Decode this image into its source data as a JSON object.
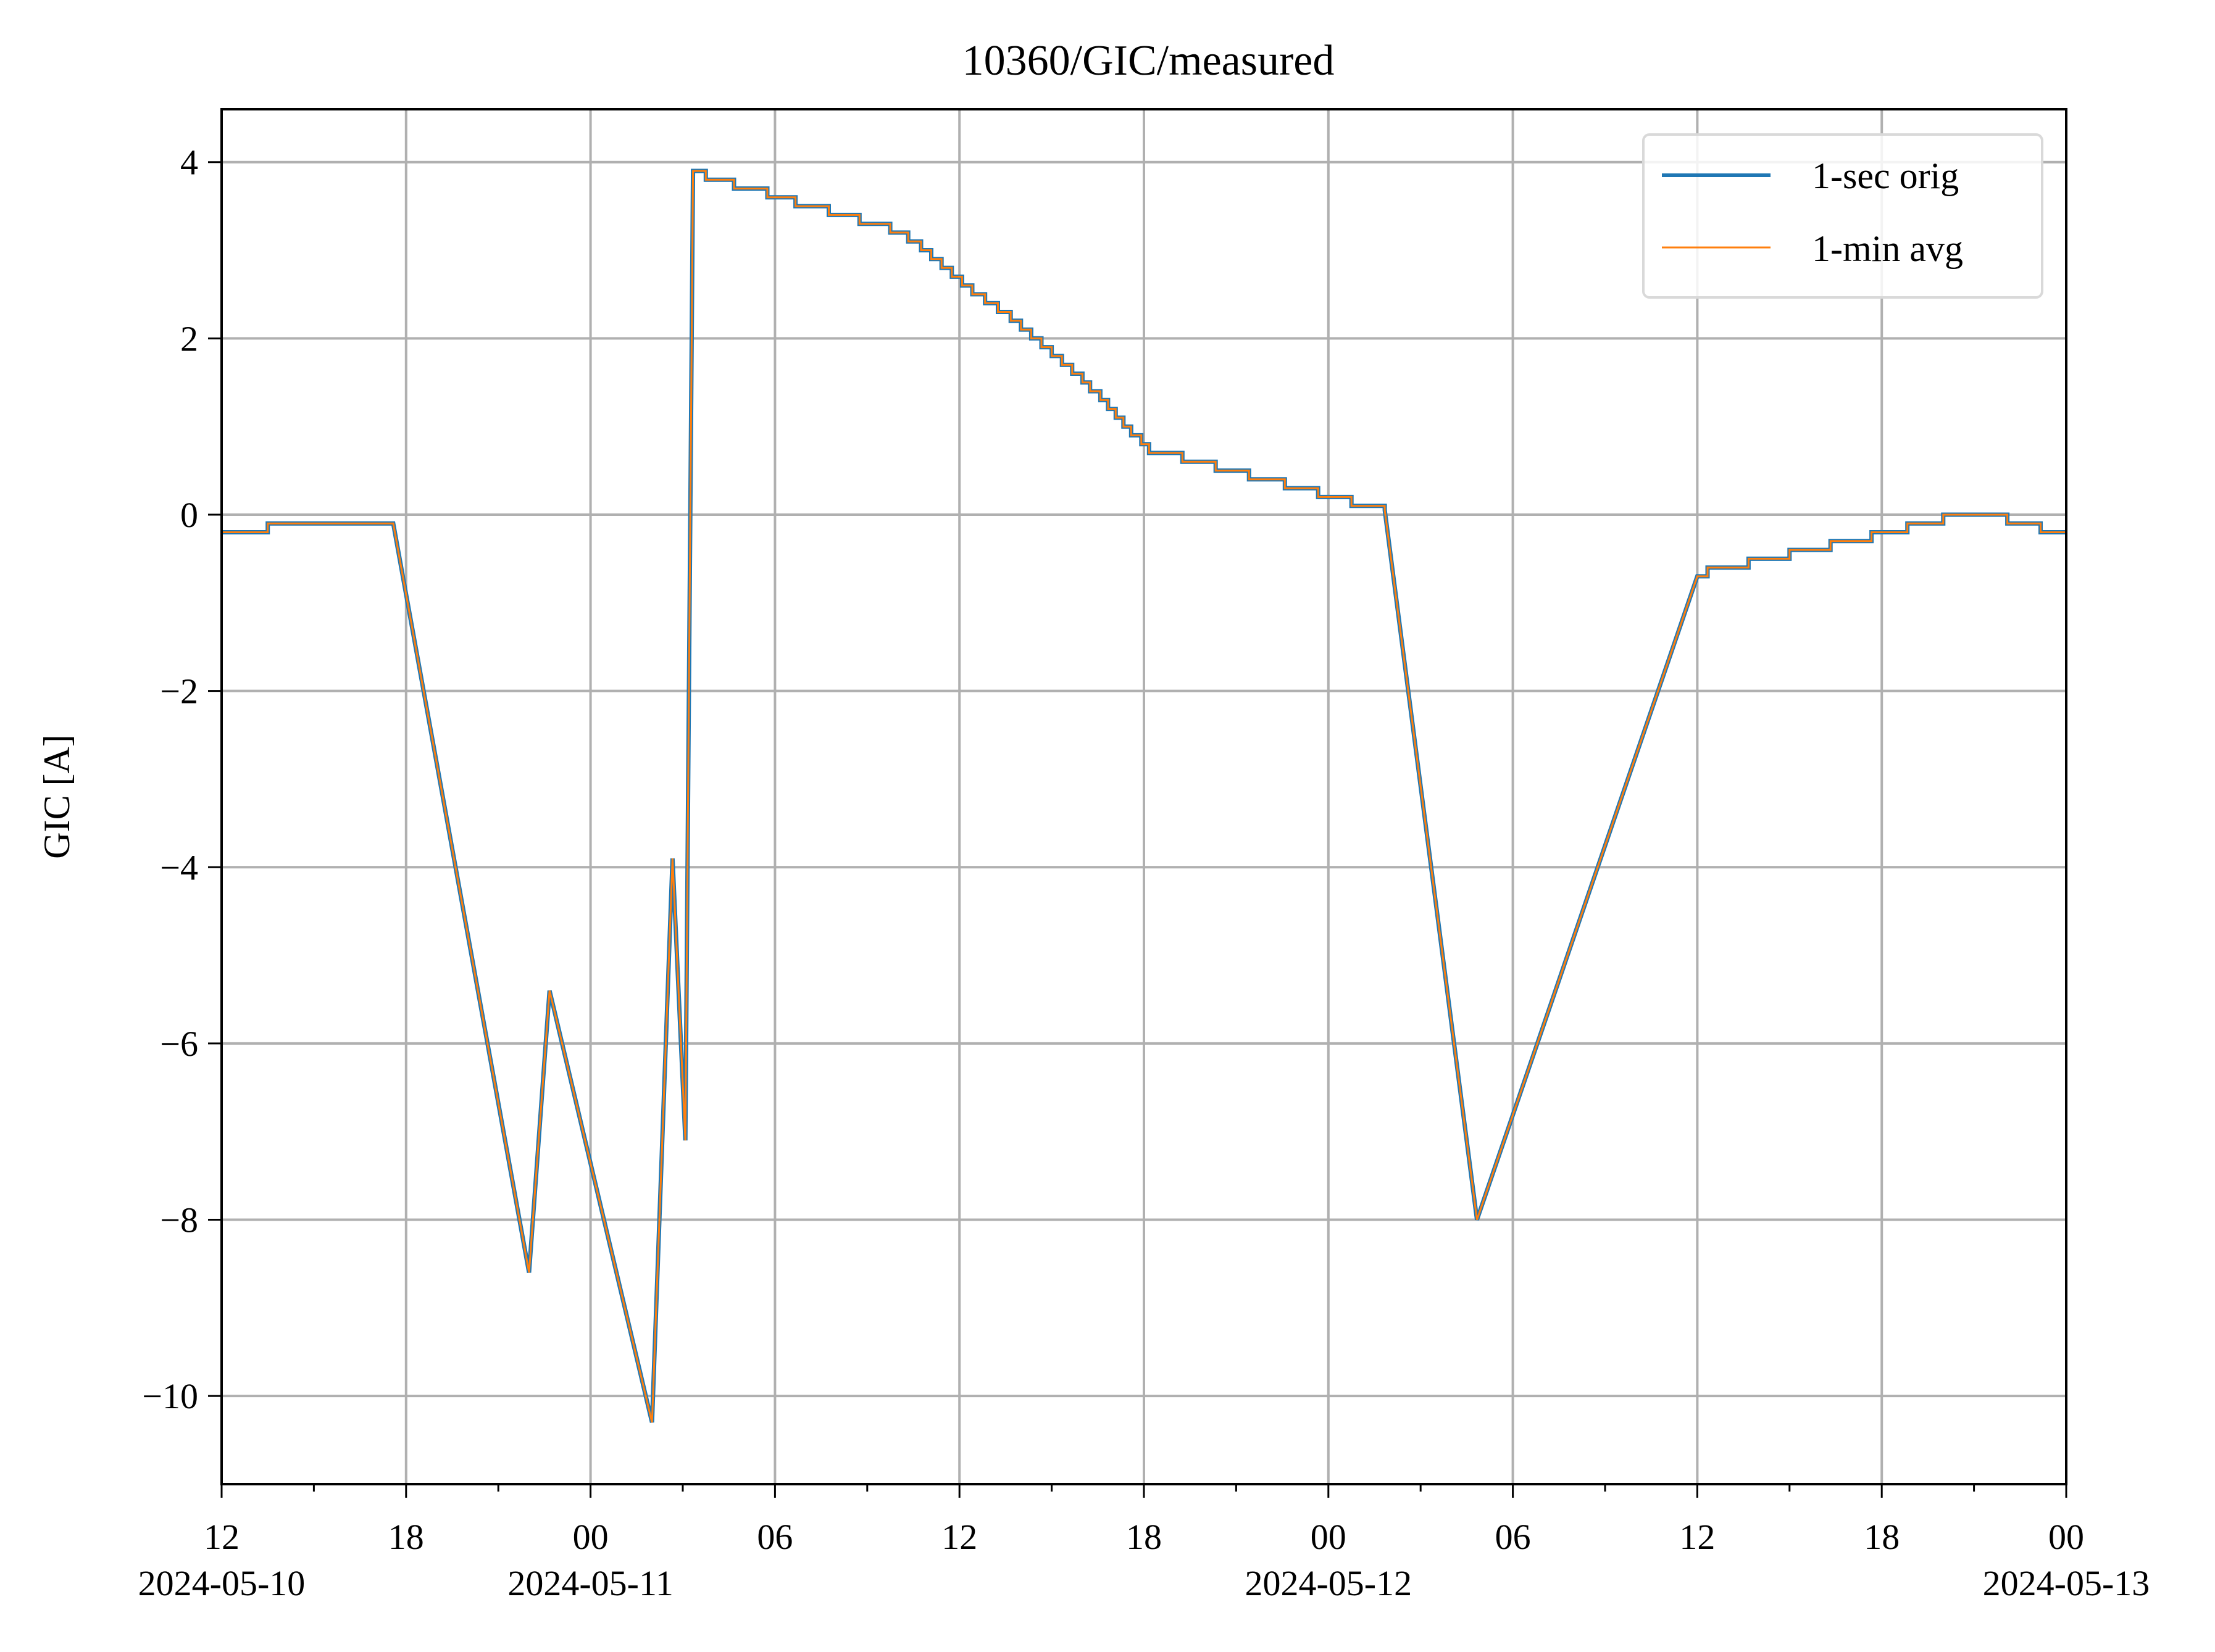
{
  "chart_data": {
    "type": "line",
    "title": "10360/GIC/measured",
    "xlabel": "",
    "ylabel": "GIC [A]",
    "x_axis": "datetime",
    "xlim": [
      "2024-05-10 12:00",
      "2024-05-13 00:00"
    ],
    "ylim": [
      -11.0,
      4.6
    ],
    "grid": true,
    "legend_position": "upper-right",
    "x_ticks": [
      {
        "t": "2024-05-10 12:00",
        "label": "12",
        "date": "2024-05-10"
      },
      {
        "t": "2024-05-10 18:00",
        "label": "18",
        "date": ""
      },
      {
        "t": "2024-05-11 00:00",
        "label": "00",
        "date": "2024-05-11"
      },
      {
        "t": "2024-05-11 06:00",
        "label": "06",
        "date": ""
      },
      {
        "t": "2024-05-11 12:00",
        "label": "12",
        "date": ""
      },
      {
        "t": "2024-05-11 18:00",
        "label": "18",
        "date": ""
      },
      {
        "t": "2024-05-12 00:00",
        "label": "00",
        "date": "2024-05-12"
      },
      {
        "t": "2024-05-12 06:00",
        "label": "06",
        "date": ""
      },
      {
        "t": "2024-05-12 12:00",
        "label": "12",
        "date": ""
      },
      {
        "t": "2024-05-12 18:00",
        "label": "18",
        "date": ""
      },
      {
        "t": "2024-05-13 00:00",
        "label": "00",
        "date": "2024-05-13"
      }
    ],
    "x_minor_ticks": [
      "2024-05-10 15:00",
      "2024-05-10 21:00",
      "2024-05-11 03:00",
      "2024-05-11 09:00",
      "2024-05-11 15:00",
      "2024-05-11 21:00",
      "2024-05-12 03:00",
      "2024-05-12 09:00",
      "2024-05-12 15:00",
      "2024-05-12 21:00"
    ],
    "y_ticks": [
      {
        "v": 4,
        "label": "4"
      },
      {
        "v": 2,
        "label": "2"
      },
      {
        "v": 0,
        "label": "0"
      },
      {
        "v": -2,
        "label": "−2"
      },
      {
        "v": -4,
        "label": "−4"
      },
      {
        "v": -6,
        "label": "−6"
      },
      {
        "v": -8,
        "label": "−8"
      },
      {
        "v": -10,
        "label": "−10"
      }
    ],
    "series": [
      {
        "name": "1-sec orig",
        "color": "#1f77b4",
        "style": "step",
        "points": [
          [
            "2024-05-10 12:00",
            -0.2
          ],
          [
            "2024-05-10 13:30",
            -0.1
          ],
          [
            "2024-05-10 17:35",
            -0.1
          ],
          [
            "2024-05-10 22:00",
            -8.6
          ],
          [
            "2024-05-10 22:40",
            -5.4
          ],
          [
            "2024-05-11 02:00",
            -10.3
          ],
          [
            "2024-05-11 02:40",
            -3.9
          ],
          [
            "2024-05-11 03:05",
            -7.1
          ],
          [
            "2024-05-11 03:20",
            3.9
          ],
          [
            "2024-05-11 03:45",
            3.8
          ],
          [
            "2024-05-11 04:40",
            3.7
          ],
          [
            "2024-05-11 05:45",
            3.6
          ],
          [
            "2024-05-11 06:40",
            3.5
          ],
          [
            "2024-05-11 07:45",
            3.4
          ],
          [
            "2024-05-11 08:45",
            3.3
          ],
          [
            "2024-05-11 09:45",
            3.2
          ],
          [
            "2024-05-11 10:20",
            3.1
          ],
          [
            "2024-05-11 10:45",
            3.0
          ],
          [
            "2024-05-11 11:05",
            2.9
          ],
          [
            "2024-05-11 11:25",
            2.8
          ],
          [
            "2024-05-11 11:45",
            2.7
          ],
          [
            "2024-05-11 12:05",
            2.6
          ],
          [
            "2024-05-11 12:25",
            2.5
          ],
          [
            "2024-05-11 12:50",
            2.4
          ],
          [
            "2024-05-11 13:15",
            2.3
          ],
          [
            "2024-05-11 13:40",
            2.2
          ],
          [
            "2024-05-11 14:00",
            2.1
          ],
          [
            "2024-05-11 14:20",
            2.0
          ],
          [
            "2024-05-11 14:40",
            1.9
          ],
          [
            "2024-05-11 15:00",
            1.8
          ],
          [
            "2024-05-11 15:20",
            1.7
          ],
          [
            "2024-05-11 15:40",
            1.6
          ],
          [
            "2024-05-11 16:00",
            1.5
          ],
          [
            "2024-05-11 16:15",
            1.4
          ],
          [
            "2024-05-11 16:35",
            1.3
          ],
          [
            "2024-05-11 16:50",
            1.2
          ],
          [
            "2024-05-11 17:05",
            1.1
          ],
          [
            "2024-05-11 17:20",
            1.0
          ],
          [
            "2024-05-11 17:35",
            0.9
          ],
          [
            "2024-05-11 17:55",
            0.8
          ],
          [
            "2024-05-11 18:10",
            0.7
          ],
          [
            "2024-05-11 19:15",
            0.6
          ],
          [
            "2024-05-11 20:20",
            0.5
          ],
          [
            "2024-05-11 21:25",
            0.4
          ],
          [
            "2024-05-11 22:35",
            0.3
          ],
          [
            "2024-05-11 23:40",
            0.2
          ],
          [
            "2024-05-12 00:45",
            0.1
          ],
          [
            "2024-05-12 01:50",
            0.05
          ],
          [
            "2024-05-12 04:50",
            -8.0
          ],
          [
            "2024-05-12 12:00",
            -0.7
          ],
          [
            "2024-05-12 12:20",
            -0.6
          ],
          [
            "2024-05-12 13:40",
            -0.5
          ],
          [
            "2024-05-12 15:00",
            -0.4
          ],
          [
            "2024-05-12 16:20",
            -0.3
          ],
          [
            "2024-05-12 17:40",
            -0.2
          ],
          [
            "2024-05-12 18:50",
            -0.1
          ],
          [
            "2024-05-12 20:00",
            0.0
          ],
          [
            "2024-05-12 22:05",
            -0.1
          ],
          [
            "2024-05-12 23:10",
            -0.2
          ],
          [
            "2024-05-13 00:00",
            -0.2
          ]
        ]
      },
      {
        "name": "1-min avg",
        "color": "#ff7f0e",
        "style": "step",
        "same_as": "1-sec orig"
      }
    ]
  }
}
